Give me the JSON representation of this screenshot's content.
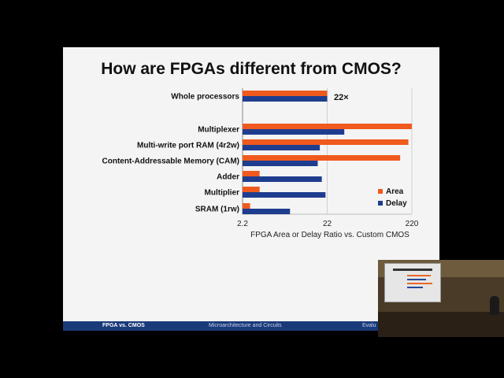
{
  "slide": {
    "title": "How are FPGAs different from CMOS?"
  },
  "footer": {
    "left": "FPGA vs. CMOS",
    "middle": "Microarchitecture and Circuits",
    "right": "Evalu"
  },
  "chart_data": {
    "type": "bar",
    "orientation": "horizontal",
    "title": "",
    "xlabel": "FPGA Area or Delay Ratio vs. Custom CMOS",
    "ylabel": "",
    "xscale": "log",
    "xlim": [
      2.2,
      220
    ],
    "xticks": [
      "2.2",
      "22",
      "220"
    ],
    "grid": "vertical",
    "legend_position": "bottom-right",
    "categories": [
      "Whole processors",
      "Multiplexer",
      "Multi-write port RAM (4r2w)",
      "Content-Addressable Memory (CAM)",
      "Adder",
      "Multiplier",
      "SRAM (1rw)"
    ],
    "series": [
      {
        "name": "Area",
        "color": "#f05a1e",
        "values": [
          22,
          220,
          200,
          160,
          3.5,
          3.5,
          2.7
        ]
      },
      {
        "name": "Delay",
        "color": "#1f3d8f",
        "values": [
          22,
          35,
          18,
          17,
          19,
          21,
          8
        ]
      }
    ],
    "annotations": [
      {
        "category": "Whole processors",
        "text": "22×"
      }
    ]
  }
}
